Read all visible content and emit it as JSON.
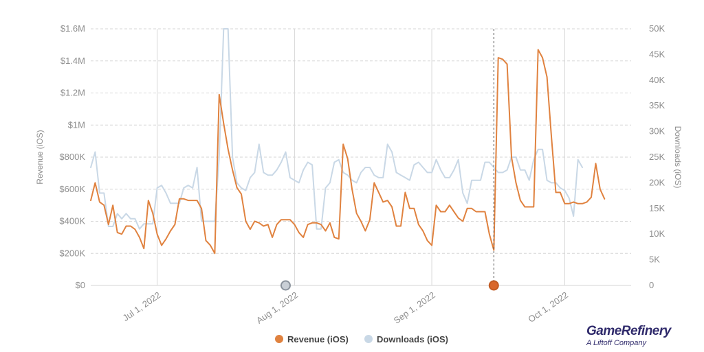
{
  "brand": {
    "name": "GameRefinery",
    "tagline": "A Liftoff Company"
  },
  "colors": {
    "revenue": "#e0823f",
    "downloads": "#c9d8e6",
    "grid": "#d6d6d6",
    "tick": "#8f8f8f"
  },
  "chart_data": {
    "type": "line",
    "xlabel": "",
    "ylabel_left": "Revenue (iOS)",
    "ylabel_right": "Downloads (iOS)",
    "ylim_left": [
      0,
      1600000
    ],
    "ylim_right": [
      0,
      50000
    ],
    "x_range": [
      "2022-06-16",
      "2022-10-16"
    ],
    "y_ticks_left": [
      "$0",
      "$200K",
      "$400K",
      "$600K",
      "$800K",
      "$1M",
      "$1.2M",
      "$1.4M",
      "$1.6M"
    ],
    "y_ticks_right": [
      "0",
      "5K",
      "10K",
      "15K",
      "20K",
      "25K",
      "30K",
      "35K",
      "40K",
      "45K",
      "50K"
    ],
    "x_ticks": [
      {
        "date": "2022-07-01",
        "label": "Jul 1, 2022"
      },
      {
        "date": "2022-08-01",
        "label": "Aug 1, 2022"
      },
      {
        "date": "2022-09-01",
        "label": "Sep 1, 2022"
      },
      {
        "date": "2022-10-01",
        "label": "Oct 1, 2022"
      }
    ],
    "grid": true,
    "legend_position": "bottom",
    "marker_dates": [
      {
        "date": "2022-07-30",
        "color": "#c9cfd6"
      },
      {
        "date": "2022-09-15",
        "color": "#d9672b"
      }
    ],
    "series": [
      {
        "name": "Revenue (iOS)",
        "axis": "left",
        "color": "#e0823f",
        "points": [
          [
            "2022-06-16",
            530000
          ],
          [
            "2022-06-17",
            640000
          ],
          [
            "2022-06-18",
            520000
          ],
          [
            "2022-06-19",
            500000
          ],
          [
            "2022-06-20",
            380000
          ],
          [
            "2022-06-21",
            500000
          ],
          [
            "2022-06-22",
            330000
          ],
          [
            "2022-06-23",
            320000
          ],
          [
            "2022-06-24",
            370000
          ],
          [
            "2022-06-25",
            370000
          ],
          [
            "2022-06-26",
            350000
          ],
          [
            "2022-06-27",
            300000
          ],
          [
            "2022-06-28",
            230000
          ],
          [
            "2022-06-29",
            530000
          ],
          [
            "2022-06-30",
            450000
          ],
          [
            "2022-07-01",
            320000
          ],
          [
            "2022-07-02",
            250000
          ],
          [
            "2022-07-03",
            290000
          ],
          [
            "2022-07-04",
            340000
          ],
          [
            "2022-07-05",
            380000
          ],
          [
            "2022-07-06",
            540000
          ],
          [
            "2022-07-07",
            540000
          ],
          [
            "2022-07-08",
            530000
          ],
          [
            "2022-07-09",
            530000
          ],
          [
            "2022-07-10",
            530000
          ],
          [
            "2022-07-11",
            480000
          ],
          [
            "2022-07-12",
            280000
          ],
          [
            "2022-07-13",
            250000
          ],
          [
            "2022-07-14",
            200000
          ],
          [
            "2022-07-15",
            1190000
          ],
          [
            "2022-07-16",
            1010000
          ],
          [
            "2022-07-17",
            850000
          ],
          [
            "2022-07-18",
            720000
          ],
          [
            "2022-07-19",
            610000
          ],
          [
            "2022-07-20",
            570000
          ],
          [
            "2022-07-21",
            400000
          ],
          [
            "2022-07-22",
            350000
          ],
          [
            "2022-07-23",
            400000
          ],
          [
            "2022-07-24",
            390000
          ],
          [
            "2022-07-25",
            370000
          ],
          [
            "2022-07-26",
            380000
          ],
          [
            "2022-07-27",
            300000
          ],
          [
            "2022-07-28",
            380000
          ],
          [
            "2022-07-29",
            410000
          ],
          [
            "2022-07-30",
            410000
          ],
          [
            "2022-07-31",
            410000
          ],
          [
            "2022-08-01",
            380000
          ],
          [
            "2022-08-02",
            330000
          ],
          [
            "2022-08-03",
            300000
          ],
          [
            "2022-08-04",
            380000
          ],
          [
            "2022-08-05",
            390000
          ],
          [
            "2022-08-06",
            390000
          ],
          [
            "2022-08-07",
            380000
          ],
          [
            "2022-08-08",
            340000
          ],
          [
            "2022-08-09",
            390000
          ],
          [
            "2022-08-10",
            300000
          ],
          [
            "2022-08-11",
            290000
          ],
          [
            "2022-08-12",
            880000
          ],
          [
            "2022-08-13",
            790000
          ],
          [
            "2022-08-14",
            600000
          ],
          [
            "2022-08-15",
            450000
          ],
          [
            "2022-08-16",
            400000
          ],
          [
            "2022-08-17",
            340000
          ],
          [
            "2022-08-18",
            410000
          ],
          [
            "2022-08-19",
            640000
          ],
          [
            "2022-08-20",
            580000
          ],
          [
            "2022-08-21",
            520000
          ],
          [
            "2022-08-22",
            530000
          ],
          [
            "2022-08-23",
            490000
          ],
          [
            "2022-08-24",
            370000
          ],
          [
            "2022-08-25",
            370000
          ],
          [
            "2022-08-26",
            580000
          ],
          [
            "2022-08-27",
            480000
          ],
          [
            "2022-08-28",
            480000
          ],
          [
            "2022-08-29",
            380000
          ],
          [
            "2022-08-30",
            340000
          ],
          [
            "2022-08-31",
            280000
          ],
          [
            "2022-09-01",
            250000
          ],
          [
            "2022-09-02",
            500000
          ],
          [
            "2022-09-03",
            460000
          ],
          [
            "2022-09-04",
            460000
          ],
          [
            "2022-09-05",
            500000
          ],
          [
            "2022-09-06",
            460000
          ],
          [
            "2022-09-07",
            420000
          ],
          [
            "2022-09-08",
            400000
          ],
          [
            "2022-09-09",
            480000
          ],
          [
            "2022-09-10",
            480000
          ],
          [
            "2022-09-11",
            460000
          ],
          [
            "2022-09-12",
            460000
          ],
          [
            "2022-09-13",
            460000
          ],
          [
            "2022-09-14",
            320000
          ],
          [
            "2022-09-15",
            220000
          ],
          [
            "2022-09-16",
            1420000
          ],
          [
            "2022-09-17",
            1410000
          ],
          [
            "2022-09-18",
            1380000
          ],
          [
            "2022-09-19",
            800000
          ],
          [
            "2022-09-20",
            640000
          ],
          [
            "2022-09-21",
            530000
          ],
          [
            "2022-09-22",
            490000
          ],
          [
            "2022-09-23",
            490000
          ],
          [
            "2022-09-24",
            490000
          ],
          [
            "2022-09-25",
            1470000
          ],
          [
            "2022-09-26",
            1420000
          ],
          [
            "2022-09-27",
            1300000
          ],
          [
            "2022-09-28",
            930000
          ],
          [
            "2022-09-29",
            580000
          ],
          [
            "2022-09-30",
            580000
          ],
          [
            "2022-10-01",
            510000
          ],
          [
            "2022-10-02",
            510000
          ],
          [
            "2022-10-03",
            520000
          ],
          [
            "2022-10-04",
            510000
          ],
          [
            "2022-10-05",
            510000
          ],
          [
            "2022-10-06",
            520000
          ],
          [
            "2022-10-07",
            550000
          ],
          [
            "2022-10-08",
            760000
          ],
          [
            "2022-10-09",
            600000
          ],
          [
            "2022-10-10",
            540000
          ]
        ]
      },
      {
        "name": "Downloads (iOS)",
        "axis": "right",
        "color": "#c9d8e6",
        "points": [
          [
            "2022-06-16",
            23000
          ],
          [
            "2022-06-17",
            26000
          ],
          [
            "2022-06-18",
            18000
          ],
          [
            "2022-06-19",
            18000
          ],
          [
            "2022-06-20",
            11500
          ],
          [
            "2022-06-21",
            11500
          ],
          [
            "2022-06-22",
            14000
          ],
          [
            "2022-06-23",
            13000
          ],
          [
            "2022-06-24",
            14000
          ],
          [
            "2022-06-25",
            13000
          ],
          [
            "2022-06-26",
            13000
          ],
          [
            "2022-06-27",
            11000
          ],
          [
            "2022-06-28",
            12000
          ],
          [
            "2022-06-29",
            12000
          ],
          [
            "2022-06-30",
            12000
          ],
          [
            "2022-07-01",
            19000
          ],
          [
            "2022-07-02",
            19500
          ],
          [
            "2022-07-03",
            18000
          ],
          [
            "2022-07-04",
            16000
          ],
          [
            "2022-07-05",
            16000
          ],
          [
            "2022-07-06",
            16000
          ],
          [
            "2022-07-07",
            19000
          ],
          [
            "2022-07-08",
            19500
          ],
          [
            "2022-07-09",
            19000
          ],
          [
            "2022-07-10",
            23000
          ],
          [
            "2022-07-11",
            12500
          ],
          [
            "2022-07-12",
            12500
          ],
          [
            "2022-07-13",
            12500
          ],
          [
            "2022-07-14",
            12500
          ],
          [
            "2022-07-15",
            25000
          ],
          [
            "2022-07-16",
            50000
          ],
          [
            "2022-07-17",
            50000
          ],
          [
            "2022-07-18",
            25000
          ],
          [
            "2022-07-19",
            20000
          ],
          [
            "2022-07-20",
            19000
          ],
          [
            "2022-07-21",
            18500
          ],
          [
            "2022-07-22",
            21000
          ],
          [
            "2022-07-23",
            22000
          ],
          [
            "2022-07-24",
            27500
          ],
          [
            "2022-07-25",
            22000
          ],
          [
            "2022-07-26",
            21500
          ],
          [
            "2022-07-27",
            21500
          ],
          [
            "2022-07-28",
            22500
          ],
          [
            "2022-07-29",
            24000
          ],
          [
            "2022-07-30",
            26000
          ],
          [
            "2022-07-31",
            21000
          ],
          [
            "2022-08-01",
            20500
          ],
          [
            "2022-08-02",
            20000
          ],
          [
            "2022-08-03",
            22500
          ],
          [
            "2022-08-04",
            24000
          ],
          [
            "2022-08-05",
            23500
          ],
          [
            "2022-08-06",
            11000
          ],
          [
            "2022-08-07",
            11000
          ],
          [
            "2022-08-08",
            19000
          ],
          [
            "2022-08-09",
            20000
          ],
          [
            "2022-08-10",
            24000
          ],
          [
            "2022-08-11",
            24500
          ],
          [
            "2022-08-12",
            22000
          ],
          [
            "2022-08-13",
            21500
          ],
          [
            "2022-08-14",
            20500
          ],
          [
            "2022-08-15",
            20000
          ],
          [
            "2022-08-16",
            22000
          ],
          [
            "2022-08-17",
            23000
          ],
          [
            "2022-08-18",
            23000
          ],
          [
            "2022-08-19",
            21500
          ],
          [
            "2022-08-20",
            21000
          ],
          [
            "2022-08-21",
            21000
          ],
          [
            "2022-08-22",
            27500
          ],
          [
            "2022-08-23",
            26000
          ],
          [
            "2022-08-24",
            22000
          ],
          [
            "2022-08-25",
            21500
          ],
          [
            "2022-08-26",
            21000
          ],
          [
            "2022-08-27",
            20500
          ],
          [
            "2022-08-28",
            23500
          ],
          [
            "2022-08-29",
            24000
          ],
          [
            "2022-08-30",
            23000
          ],
          [
            "2022-08-31",
            22000
          ],
          [
            "2022-09-01",
            22000
          ],
          [
            "2022-09-02",
            24500
          ],
          [
            "2022-09-03",
            22500
          ],
          [
            "2022-09-04",
            21000
          ],
          [
            "2022-09-05",
            21000
          ],
          [
            "2022-09-06",
            22500
          ],
          [
            "2022-09-07",
            24500
          ],
          [
            "2022-09-08",
            18000
          ],
          [
            "2022-09-09",
            16000
          ],
          [
            "2022-09-10",
            20500
          ],
          [
            "2022-09-11",
            20500
          ],
          [
            "2022-09-12",
            20500
          ],
          [
            "2022-09-13",
            24000
          ],
          [
            "2022-09-14",
            24000
          ],
          [
            "2022-09-15",
            23000
          ],
          [
            "2022-09-16",
            22000
          ],
          [
            "2022-09-17",
            22000
          ],
          [
            "2022-09-18",
            22500
          ],
          [
            "2022-09-19",
            25000
          ],
          [
            "2022-09-20",
            25000
          ],
          [
            "2022-09-21",
            22500
          ],
          [
            "2022-09-22",
            22500
          ],
          [
            "2022-09-23",
            20500
          ],
          [
            "2022-09-24",
            24500
          ],
          [
            "2022-09-25",
            26500
          ],
          [
            "2022-09-26",
            26500
          ],
          [
            "2022-09-27",
            20500
          ],
          [
            "2022-09-28",
            20000
          ],
          [
            "2022-09-29",
            20000
          ],
          [
            "2022-09-30",
            19000
          ],
          [
            "2022-10-01",
            18500
          ],
          [
            "2022-10-02",
            17000
          ],
          [
            "2022-10-03",
            13500
          ],
          [
            "2022-10-04",
            24500
          ],
          [
            "2022-10-05",
            23000
          ]
        ]
      }
    ]
  }
}
